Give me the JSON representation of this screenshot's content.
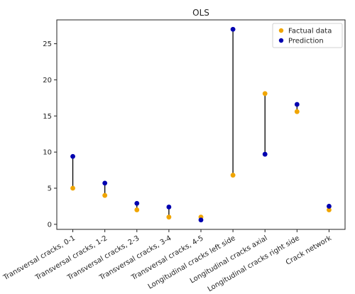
{
  "chart_data": {
    "type": "scatter",
    "title": "OLS",
    "xlabel": "",
    "ylabel": "",
    "categories": [
      "Transversal cracks, 0-1",
      "Transversal cracks, 1-2",
      "Transversal cracks, 2-3",
      "Transversal cracks, 3-4",
      "Transversal cracks, 4-5",
      "Longitudinal cracks left side",
      "Longitudinal cracks axial",
      "Longitudinal cracks right side",
      "Crack network"
    ],
    "series": [
      {
        "name": "Factual data",
        "color": "#f0a500",
        "values": [
          5.0,
          4.0,
          2.0,
          1.0,
          1.0,
          6.8,
          18.1,
          15.6,
          2.0
        ]
      },
      {
        "name": "Prediction",
        "color": "#0000b0",
        "values": [
          9.4,
          5.7,
          2.9,
          2.4,
          0.6,
          27.0,
          9.7,
          16.6,
          2.5
        ]
      }
    ],
    "yticks": [
      0,
      5,
      10,
      15,
      20,
      25
    ],
    "ylim": [
      -0.7,
      28.3
    ],
    "grid": false,
    "legend": "top-right",
    "connector_color": "#000000"
  }
}
